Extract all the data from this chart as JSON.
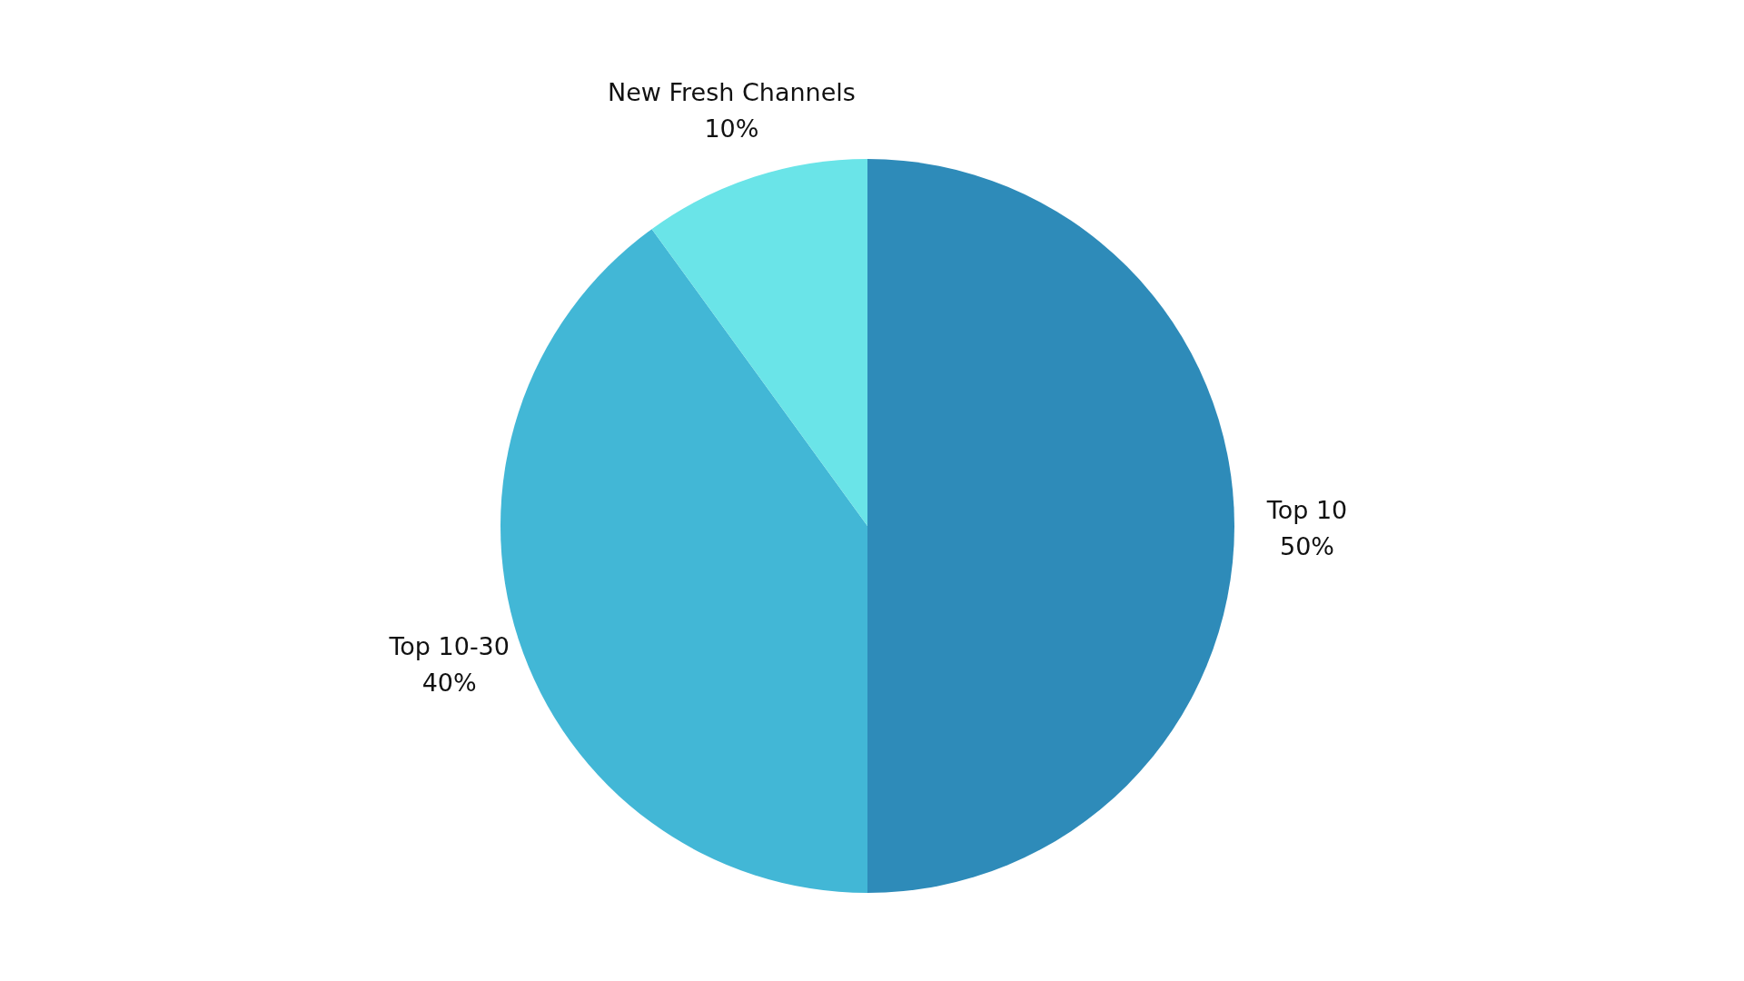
{
  "chart_data": {
    "type": "pie",
    "categories": [
      "Top 10",
      "Top 10-30",
      "New Fresh Channels"
    ],
    "values": [
      50,
      40,
      10
    ],
    "value_labels": [
      "50%",
      "40%",
      "10%"
    ],
    "colors": [
      "#2e8bb9",
      "#42b7d6",
      "#6ae4e8"
    ]
  }
}
